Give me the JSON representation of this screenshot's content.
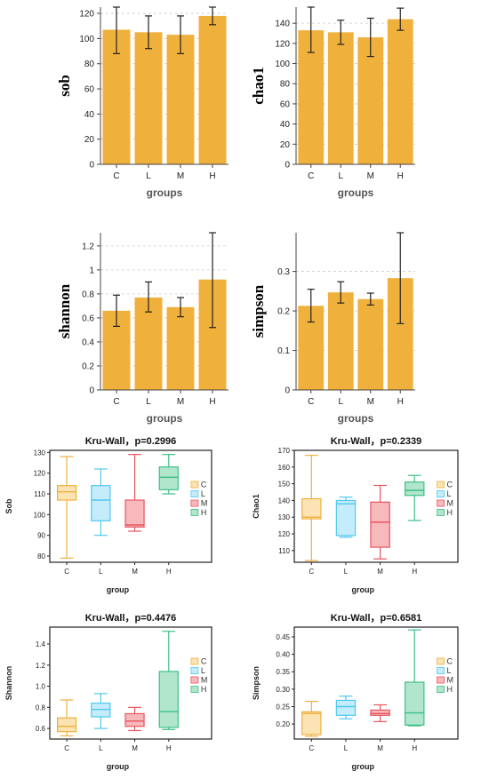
{
  "colors": {
    "bar": "#f0b03c",
    "errorbar": "#222222",
    "grid": "#cccccc",
    "groups": {
      "C": {
        "stroke": "#f0b03c",
        "fill": "#fbe3b3"
      },
      "L": {
        "stroke": "#4fc8f0",
        "fill": "#c4ecfa"
      },
      "M": {
        "stroke": "#e8555f",
        "fill": "#f8b9bd"
      },
      "H": {
        "stroke": "#3dbf86",
        "fill": "#b1e6cd"
      }
    }
  },
  "chart_data": [
    {
      "type": "bar",
      "categories": [
        "C",
        "L",
        "M",
        "H"
      ],
      "values": [
        107,
        105,
        103,
        118
      ],
      "errors_low": [
        88,
        92,
        88,
        111
      ],
      "errors_high": [
        125,
        118,
        118,
        125
      ],
      "xlabel": "groups",
      "ylabel": "sob",
      "ylim": [
        0,
        125
      ],
      "yticks": [
        "0",
        "20",
        "40",
        "60",
        "80",
        "100",
        "120"
      ],
      "ytick_values": [
        0,
        20,
        40,
        60,
        80,
        100,
        120
      ],
      "grid": "horizontal dashed"
    },
    {
      "type": "bar",
      "categories": [
        "C",
        "L",
        "M",
        "H"
      ],
      "values": [
        133,
        131,
        126,
        144
      ],
      "errors_low": [
        111,
        119,
        107,
        133
      ],
      "errors_high": [
        156,
        143,
        145,
        155
      ],
      "xlabel": "groups",
      "ylabel": "chao1",
      "ylim": [
        0,
        156
      ],
      "yticks": [
        "0",
        "20",
        "40",
        "60",
        "80",
        "100",
        "120",
        "140"
      ],
      "ytick_values": [
        0,
        20,
        40,
        60,
        80,
        100,
        120,
        140
      ],
      "grid": "horizontal dashed"
    },
    {
      "type": "bar",
      "categories": [
        "C",
        "L",
        "M",
        "H"
      ],
      "values": [
        0.66,
        0.77,
        0.69,
        0.92
      ],
      "errors_low": [
        0.53,
        0.65,
        0.61,
        0.52
      ],
      "errors_high": [
        0.79,
        0.9,
        0.77,
        1.31
      ],
      "xlabel": "groups",
      "ylabel": "shannon",
      "ylim": [
        0,
        1.31
      ],
      "yticks": [
        "0",
        "0.2",
        "0.4",
        "0.6",
        "0.8",
        "1",
        "1.2"
      ],
      "ytick_values": [
        0,
        0.2,
        0.4,
        0.6,
        0.8,
        1,
        1.2
      ],
      "grid": "horizontal dashed"
    },
    {
      "type": "bar",
      "categories": [
        "C",
        "L",
        "M",
        "H"
      ],
      "values": [
        0.213,
        0.247,
        0.23,
        0.283
      ],
      "errors_low": [
        0.172,
        0.22,
        0.215,
        0.168
      ],
      "errors_high": [
        0.255,
        0.274,
        0.245,
        0.398
      ],
      "xlabel": "groups",
      "ylabel": "simpson",
      "ylim": [
        0,
        0.398
      ],
      "yticks": [
        "0",
        "0.1",
        "0.2",
        "0.3"
      ],
      "ytick_values": [
        0,
        0.1,
        0.2,
        0.3
      ],
      "grid": "horizontal dashed"
    },
    {
      "type": "box",
      "title": "Kru-Wall，p=0.2996",
      "categories": [
        "C",
        "L",
        "M",
        "H"
      ],
      "boxes": [
        {
          "min": 79,
          "q1": 107,
          "median": 111,
          "q3": 114,
          "max": 128
        },
        {
          "min": 90,
          "q1": 97,
          "median": 107,
          "q3": 114,
          "max": 122
        },
        {
          "min": 92,
          "q1": 94,
          "median": 95,
          "q3": 107,
          "max": 129
        },
        {
          "min": 110,
          "q1": 112,
          "median": 118,
          "q3": 123,
          "max": 129
        }
      ],
      "xlabel": "group",
      "ylabel": "Sob",
      "ylim": [
        77,
        131
      ],
      "yticks": [
        "80",
        "90",
        "100",
        "110",
        "120",
        "130"
      ],
      "ytick_values": [
        80,
        90,
        100,
        110,
        120,
        130
      ],
      "legend": [
        "C",
        "L",
        "M",
        "H"
      ],
      "legend_position": "right"
    },
    {
      "type": "box",
      "title": "Kru-Wall，p=0.2339",
      "categories": [
        "C",
        "L",
        "M",
        "H"
      ],
      "boxes": [
        {
          "min": 104,
          "q1": 129,
          "median": 130,
          "q3": 141,
          "max": 167
        },
        {
          "min": 118,
          "q1": 119,
          "median": 138,
          "q3": 140,
          "max": 142
        },
        {
          "min": 105,
          "q1": 112,
          "median": 127,
          "q3": 139,
          "max": 149
        },
        {
          "min": 128,
          "q1": 143,
          "median": 146,
          "q3": 151,
          "max": 155
        }
      ],
      "xlabel": "group",
      "ylabel": "Chao1",
      "ylim": [
        103,
        170
      ],
      "yticks": [
        "110",
        "120",
        "130",
        "140",
        "150",
        "160",
        "170"
      ],
      "ytick_values": [
        110,
        120,
        130,
        140,
        150,
        160,
        170
      ],
      "legend": [
        "C",
        "L",
        "M",
        "H"
      ],
      "legend_position": "right"
    },
    {
      "type": "box",
      "title": "Kru-Wall，p=0.4476",
      "categories": [
        "C",
        "L",
        "M",
        "H"
      ],
      "boxes": [
        {
          "min": 0.53,
          "q1": 0.57,
          "median": 0.62,
          "q3": 0.7,
          "max": 0.87
        },
        {
          "min": 0.6,
          "q1": 0.71,
          "median": 0.78,
          "q3": 0.84,
          "max": 0.93
        },
        {
          "min": 0.58,
          "q1": 0.62,
          "median": 0.67,
          "q3": 0.74,
          "max": 0.8
        },
        {
          "min": 0.59,
          "q1": 0.61,
          "median": 0.76,
          "q3": 1.14,
          "max": 1.52
        }
      ],
      "xlabel": "group",
      "ylabel": "Shannon",
      "ylim": [
        0.5,
        1.56
      ],
      "yticks": [
        "0.6",
        "0.8",
        "1.0",
        "1.2",
        "1.4"
      ],
      "ytick_values": [
        0.6,
        0.8,
        1.0,
        1.2,
        1.4
      ],
      "legend": [
        "C",
        "L",
        "M",
        "H"
      ],
      "legend_position": "right"
    },
    {
      "type": "box",
      "title": "Kru-Wall，p=0.6581",
      "categories": [
        "C",
        "L",
        "M",
        "H"
      ],
      "boxes": [
        {
          "min": 0.165,
          "q1": 0.17,
          "median": 0.23,
          "q3": 0.235,
          "max": 0.265
        },
        {
          "min": 0.215,
          "q1": 0.225,
          "median": 0.25,
          "q3": 0.268,
          "max": 0.28
        },
        {
          "min": 0.207,
          "q1": 0.225,
          "median": 0.23,
          "q3": 0.24,
          "max": 0.255
        },
        {
          "min": 0.195,
          "q1": 0.197,
          "median": 0.232,
          "q3": 0.32,
          "max": 0.47
        }
      ],
      "xlabel": "group",
      "ylabel": "Simpson",
      "ylim": [
        0.157,
        0.478
      ],
      "yticks": [
        "0.20",
        "0.25",
        "0.30",
        "0.35",
        "0.40",
        "0.45"
      ],
      "ytick_values": [
        0.2,
        0.25,
        0.3,
        0.35,
        0.4,
        0.45
      ],
      "legend": [
        "C",
        "L",
        "M",
        "H"
      ],
      "legend_position": "right"
    }
  ]
}
